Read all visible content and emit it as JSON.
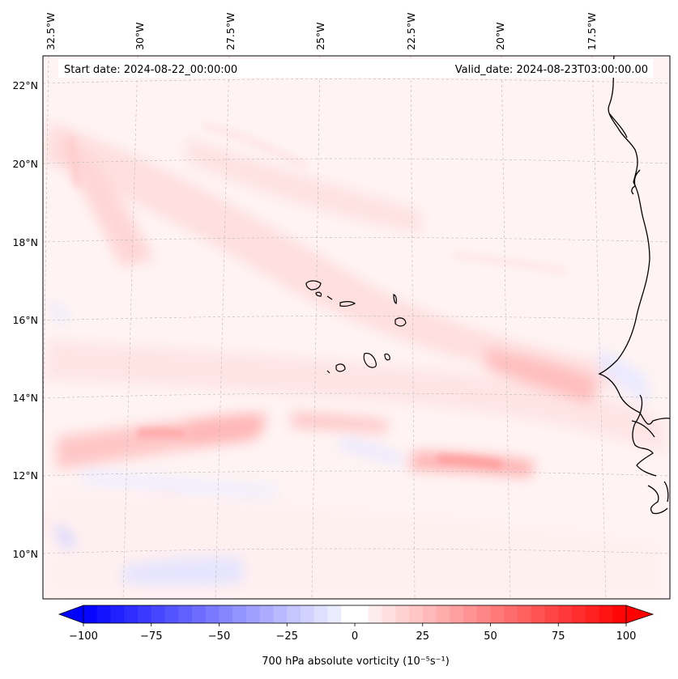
{
  "header": {
    "start_date": "Start date: 2024-08-22_00:00:00",
    "valid_date": "Valid_date: 2024-08-23T03:00:00.00"
  },
  "lon_labels": [
    "32.5°W",
    "30°W",
    "27.5°W",
    "25°W",
    "22.5°W",
    "20°W",
    "17.5°W"
  ],
  "lat_labels": [
    "22°N",
    "20°N",
    "18°N",
    "16°N",
    "14°N",
    "12°N",
    "10°N"
  ],
  "colorbar": {
    "ticks": [
      "−100",
      "−75",
      "−50",
      "−25",
      "0",
      "25",
      "50",
      "75",
      "100"
    ],
    "min": -100,
    "max": 100,
    "label": "700 hPa absolute vorticity (10⁻⁵s⁻¹)",
    "neg_color": "#0000ff",
    "pos_color": "#ff0000"
  }
}
